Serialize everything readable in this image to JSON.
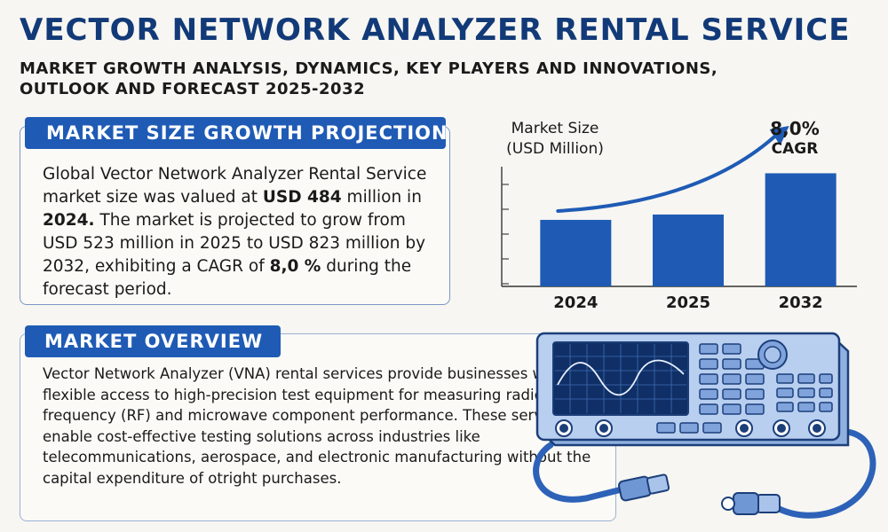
{
  "header": {
    "title": "VECTOR NETWORK ANALYZER RENTAL SERVICE",
    "subtitle_line1": "MARKET GROWTH ANALYSIS, DYNAMICS, KEY PLAYERS AND INNOVATIONS,",
    "subtitle_line2": "OUTLOOK AND FORECAST 2025-2032"
  },
  "growth_section": {
    "heading": "MARKET SIZE GROWTH PROJECTION",
    "text_1": "Global Vector Network Analyzer Rental Service market size was valued at ",
    "value_2024": "USD 484",
    "text_2": " million in ",
    "year_2024": "2024.",
    "text_3": " The market is projected to grow from USD 523 million in 2025 to USD 823 million by 2032, exhibiting a CAGR of ",
    "cagr": "8,0 %",
    "text_4": " during the forecast period."
  },
  "overview_section": {
    "heading": "MARKET OVERVIEW",
    "text": "Vector Network Analyzer (VNA) rental services provide businesses with flexible access to high-precision test equipment for measuring radio frequency (RF) and microwave component performance. These services enable cost-effective testing solutions across industries like telecommunications, aerospace, and electronic manufacturing without the capital expenditure of otright purchases."
  },
  "chart_data": {
    "type": "bar",
    "categories": [
      "2024",
      "2025",
      "2032"
    ],
    "values": [
      484,
      523,
      823
    ],
    "ylabel_line1": "Market Size",
    "ylabel_line2": "(USD Million)",
    "annotation_value": "8,0%",
    "annotation_label": "CAGR",
    "ylim": [
      0,
      1000
    ],
    "grid": false,
    "bar_color": "#1f5bb5",
    "arrow_color": "#1f5bb5"
  },
  "colors": {
    "title": "#123a78",
    "accent": "#1f5bb5",
    "background": "#f7f6f2"
  },
  "icons": [
    "vector-network-analyzer-icon",
    "trend-arrow-icon"
  ]
}
